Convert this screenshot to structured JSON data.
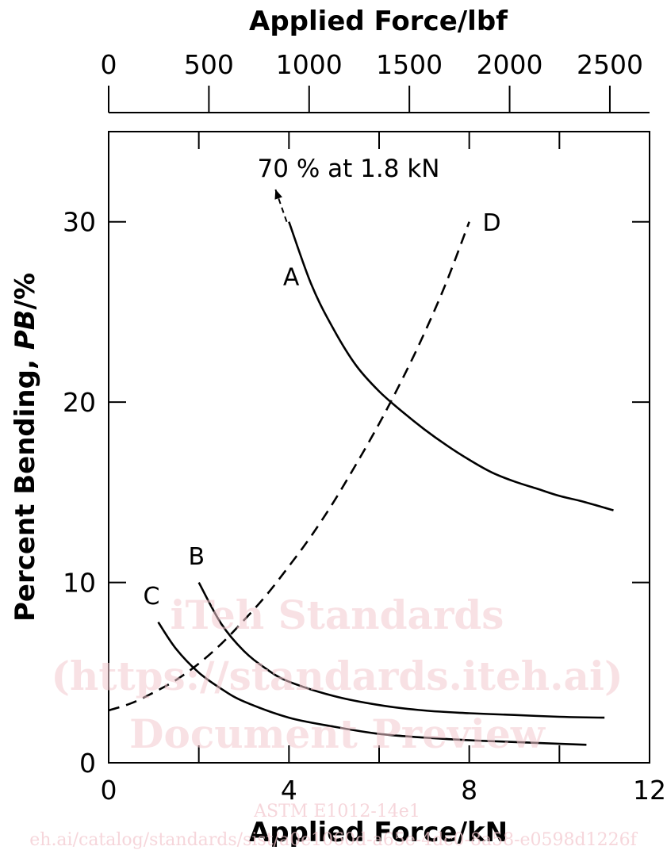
{
  "chart_data": {
    "type": "line",
    "xlabel": "Applied Force/kN",
    "x2label": "Applied Force/lbf",
    "ylabel_prefix": "Percent Bending, ",
    "ylabel_italic": "PB",
    "ylabel_suffix": "/%",
    "xlim": [
      0,
      12
    ],
    "ylim": [
      0,
      35
    ],
    "x2lim": [
      0,
      2698
    ],
    "x_ticks": [
      0,
      2,
      4,
      6,
      8,
      10,
      12
    ],
    "x_tick_labels": [
      "0",
      "4",
      "8",
      "12"
    ],
    "x_tick_label_values": [
      0,
      4,
      8,
      12
    ],
    "x2_ticks": [
      0,
      500,
      1000,
      1500,
      2000,
      2500
    ],
    "x2_tick_labels": [
      "0",
      "500",
      "1000",
      "1500",
      "2000",
      "2500"
    ],
    "y_ticks": [
      0,
      10,
      20,
      30
    ],
    "y_tick_labels": [
      "0",
      "10",
      "20",
      "30"
    ],
    "grid": false,
    "series": [
      {
        "name": "A",
        "style": "solid",
        "x": [
          4.0,
          4.5,
          5.0,
          5.5,
          6.0,
          6.5,
          7.0,
          7.5,
          8.0,
          8.5,
          9.0,
          9.5,
          10.0,
          10.5,
          11.2
        ],
        "y": [
          30.0,
          26.5,
          24.0,
          22.0,
          20.6,
          19.5,
          18.5,
          17.6,
          16.8,
          16.1,
          15.6,
          15.2,
          14.8,
          14.5,
          14.0
        ]
      },
      {
        "name": "B",
        "style": "solid",
        "x": [
          2.0,
          2.5,
          3.0,
          3.5,
          4.0,
          5.0,
          6.0,
          7.0,
          8.0,
          9.0,
          10.0,
          11.0
        ],
        "y": [
          10.0,
          7.7,
          6.2,
          5.2,
          4.5,
          3.7,
          3.2,
          2.9,
          2.75,
          2.65,
          2.55,
          2.5
        ]
      },
      {
        "name": "C",
        "style": "solid",
        "x": [
          1.1,
          1.5,
          2.0,
          2.5,
          3.0,
          4.0,
          5.0,
          6.0,
          7.0,
          8.0,
          9.0,
          10.6
        ],
        "y": [
          7.8,
          6.3,
          5.0,
          4.1,
          3.4,
          2.5,
          2.0,
          1.6,
          1.4,
          1.25,
          1.15,
          1.0
        ]
      },
      {
        "name": "D",
        "style": "dashed",
        "x": [
          0.0,
          0.5,
          1.0,
          1.5,
          2.0,
          2.5,
          3.0,
          3.5,
          4.0,
          4.5,
          5.0,
          5.5,
          6.0,
          6.5,
          7.0,
          7.5,
          8.0
        ],
        "y": [
          2.9,
          3.3,
          3.9,
          4.6,
          5.5,
          6.6,
          7.9,
          9.3,
          10.9,
          12.6,
          14.5,
          16.6,
          18.8,
          21.2,
          23.8,
          26.7,
          30.0
        ]
      }
    ],
    "curve_labels": [
      {
        "text": "A",
        "x": 4.05,
        "y": 26.5
      },
      {
        "text": "B",
        "x": 1.95,
        "y": 11.0
      },
      {
        "text": "C",
        "x": 0.95,
        "y": 8.8
      },
      {
        "text": "D",
        "x": 8.5,
        "y": 29.5
      }
    ],
    "annotation": {
      "text": "70 % at 1.8 kN",
      "arrow_from": [
        3.95,
        30.0
      ],
      "arrow_to": [
        3.7,
        31.8
      ],
      "x": 3.3,
      "y": 32.5
    }
  },
  "watermark": {
    "lines": [
      "iTeh Standards",
      "(https://standards.iteh.ai)",
      "Document Preview"
    ],
    "footer_code": "ASTM E1012-14e1",
    "footer_url": "eh.ai/catalog/standards/sist/a0e1060d-a65e-4dc0-8a58-e0598d1226f"
  }
}
